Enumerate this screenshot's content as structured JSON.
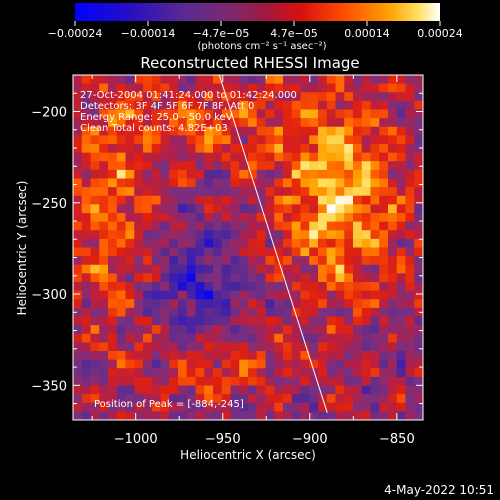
{
  "colors": {
    "background": "#000000",
    "foreground": "#ffffff",
    "colormap": [
      "#0000ff",
      "#3a1fb0",
      "#5a2a90",
      "#7a3080",
      "#b0204a",
      "#e02010",
      "#ff5a00",
      "#ffa000",
      "#ffe060",
      "#ffffff"
    ]
  },
  "chart_data": [
    {
      "type": "heatmap",
      "title": "Reconstructed RHESSI Image",
      "xlabel": "Heliocentric X (arcsec)",
      "ylabel": "Heliocentric Y (arcsec)",
      "xlim": [
        -1036,
        -835
      ],
      "ylim": [
        -369,
        -180
      ],
      "xticks": [
        -1000,
        -950,
        -900,
        -850
      ],
      "xtick_labels": [
        "−1000",
        "−950",
        "−900",
        "−850"
      ],
      "yticks": [
        -350,
        -300,
        -250,
        -200
      ],
      "ytick_labels": [
        "−350",
        "−300",
        "−250",
        "−200"
      ],
      "annotations": [
        "27-Oct-2004 01:41:24.000 to 01:42:24.000",
        "Detectors: 3F 4F 5F 6F 7F 8F, Att 0",
        "Energy Range: 25.0 - 50.0 keV",
        "Clean    Total counts: 4.82E+03"
      ],
      "peak_label": "Position of Peak = [-884,-245]",
      "peak_position": [
        -884,
        -245
      ],
      "limb_line": [
        [
          -952,
          -180
        ],
        [
          -890,
          -365
        ]
      ],
      "grid": false
    },
    {
      "type": "colorbar",
      "range": [
        -0.00024,
        0.00024
      ],
      "tick_labels": [
        "−0.00024",
        "−0.00014",
        "−4.7e−05",
        "4.7e−05",
        "0.00014",
        "0.00024"
      ],
      "unit_label": "(photons cm⁻² s⁻¹ asec⁻²)"
    }
  ],
  "footer": {
    "date": "4-May-2022 10:51"
  }
}
